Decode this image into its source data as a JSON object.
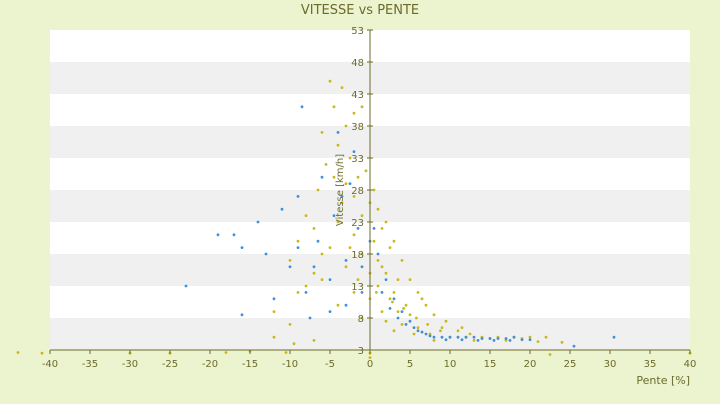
{
  "chart_data": {
    "type": "scatter",
    "title": "VITESSE vs PENTE",
    "xlabel": "Pente [%]",
    "ylabel": "Vitesse [km/h]",
    "xlim": [
      -40,
      40
    ],
    "ylim": [
      3,
      53
    ],
    "x_ticks": [
      "-40",
      "-35",
      "-30",
      "-25",
      "-20",
      "-15",
      "-10",
      "-5",
      "0",
      "5",
      "10",
      "15",
      "20",
      "25",
      "30",
      "35",
      "40"
    ],
    "y_ticks": [
      "3",
      "8",
      "13",
      "18",
      "23",
      "28",
      "33",
      "38",
      "43",
      "48",
      "53"
    ],
    "grid": true,
    "legend": "none",
    "colors": {
      "background": "#ecf3cf",
      "band_light": "#ffffff",
      "band_shade": "#f0f0f0",
      "axis": "#6b6b2a",
      "series_yellow": "#c8b81a",
      "series_blue": "#3d8fd8"
    },
    "series": [
      {
        "color_key": "series_yellow",
        "points": [
          [
            -5.0,
            45
          ],
          [
            -3.5,
            44
          ],
          [
            -4.5,
            41
          ],
          [
            -2.0,
            40
          ],
          [
            -1.0,
            41
          ],
          [
            -6.0,
            37
          ],
          [
            -3.0,
            38
          ],
          [
            -4.0,
            35
          ],
          [
            -2.5,
            33
          ],
          [
            -5.5,
            32
          ],
          [
            -1.5,
            30
          ],
          [
            -3.0,
            29
          ],
          [
            -6.5,
            28
          ],
          [
            -2.0,
            27
          ],
          [
            0.0,
            26
          ],
          [
            1.0,
            25
          ],
          [
            -1.0,
            24
          ],
          [
            2.0,
            23
          ],
          [
            -4.0,
            23
          ],
          [
            -7.0,
            22
          ],
          [
            -9.0,
            20
          ],
          [
            -2.0,
            21
          ],
          [
            0.5,
            20
          ],
          [
            3.0,
            20
          ],
          [
            -5.0,
            19
          ],
          [
            -1.0,
            18
          ],
          [
            1.0,
            17
          ],
          [
            4.0,
            17
          ],
          [
            -3.0,
            16
          ],
          [
            0.0,
            15
          ],
          [
            2.0,
            15
          ],
          [
            5.0,
            14
          ],
          [
            -6.0,
            14
          ],
          [
            -8.0,
            13
          ],
          [
            1.0,
            13
          ],
          [
            3.0,
            12
          ],
          [
            6.0,
            12
          ],
          [
            -2.0,
            12
          ],
          [
            0.0,
            11
          ],
          [
            2.5,
            11
          ],
          [
            4.5,
            10
          ],
          [
            7.0,
            10
          ],
          [
            -4.0,
            10
          ],
          [
            1.5,
            9
          ],
          [
            3.5,
            9
          ],
          [
            5.0,
            8.5
          ],
          [
            8.0,
            8.5
          ],
          [
            -1.0,
            8
          ],
          [
            2.0,
            7.5
          ],
          [
            4.0,
            7
          ],
          [
            6.0,
            6.5
          ],
          [
            9.0,
            6.5
          ],
          [
            11.0,
            6
          ],
          [
            3.0,
            6
          ],
          [
            5.5,
            5.5
          ],
          [
            7.5,
            5.5
          ],
          [
            10.0,
            5
          ],
          [
            12.0,
            5
          ],
          [
            14.0,
            5
          ],
          [
            16.0,
            5
          ],
          [
            18.0,
            5
          ],
          [
            20.0,
            5
          ],
          [
            22.0,
            5
          ],
          [
            8.0,
            4.5
          ],
          [
            13.0,
            4.5
          ],
          [
            17.0,
            4.5
          ],
          [
            -10.0,
            7
          ],
          [
            -12.0,
            5
          ],
          [
            -7.0,
            4.5
          ],
          [
            -9.5,
            4
          ],
          [
            -15.0,
            2.8
          ],
          [
            -18.0,
            2.6
          ],
          [
            -25.0,
            2.5
          ],
          [
            -30.0,
            2.5
          ],
          [
            -44.0,
            2.6
          ],
          [
            -41.0,
            2.5
          ],
          [
            -10.5,
            2.6
          ],
          [
            0.0,
            2.5
          ],
          [
            0.0,
            1.8
          ],
          [
            22.5,
            2.3
          ],
          [
            40.0,
            2.5
          ],
          [
            -12.0,
            9
          ],
          [
            -9.0,
            12
          ],
          [
            -7.0,
            15
          ],
          [
            -6.0,
            18
          ],
          [
            -10.0,
            17
          ],
          [
            -8.0,
            24
          ],
          [
            1.5,
            16
          ],
          [
            2.5,
            19
          ],
          [
            3.5,
            14
          ],
          [
            6.5,
            11
          ],
          [
            9.5,
            7.5
          ],
          [
            11.5,
            6.5
          ],
          [
            15.0,
            4.8
          ],
          [
            19.0,
            4.8
          ],
          [
            21.0,
            4.3
          ],
          [
            -3.5,
            26
          ],
          [
            -4.5,
            30
          ],
          [
            -0.5,
            31
          ],
          [
            0.5,
            28
          ],
          [
            1.5,
            22
          ],
          [
            -2.5,
            19
          ],
          [
            -1.5,
            14
          ],
          [
            0.8,
            12
          ],
          [
            2.8,
            10.5
          ],
          [
            4.2,
            9.5
          ],
          [
            5.8,
            8
          ],
          [
            7.2,
            7
          ],
          [
            8.8,
            6
          ],
          [
            12.5,
            5.5
          ],
          [
            24.0,
            4.2
          ]
        ]
      },
      {
        "color_key": "series_blue",
        "points": [
          [
            -8.5,
            41
          ],
          [
            -4.0,
            37
          ],
          [
            -2.0,
            34
          ],
          [
            -6.0,
            30
          ],
          [
            -9.0,
            27
          ],
          [
            -11.0,
            25
          ],
          [
            -14.0,
            23
          ],
          [
            -19.0,
            21
          ],
          [
            -17.0,
            21
          ],
          [
            -16.0,
            19
          ],
          [
            -13.0,
            18
          ],
          [
            -10.0,
            16
          ],
          [
            -7.0,
            16
          ],
          [
            -5.0,
            14
          ],
          [
            -23.0,
            13
          ],
          [
            -16.0,
            8.5
          ],
          [
            -12.0,
            11
          ],
          [
            -8.0,
            12
          ],
          [
            -3.0,
            17
          ],
          [
            -1.0,
            16
          ],
          [
            0.5,
            22
          ],
          [
            1.0,
            18
          ],
          [
            2.0,
            14
          ],
          [
            3.0,
            11
          ],
          [
            4.0,
            9
          ],
          [
            5.0,
            7.5
          ],
          [
            6.0,
            6
          ],
          [
            7.0,
            5.5
          ],
          [
            8.0,
            5
          ],
          [
            9.0,
            5
          ],
          [
            10.0,
            5
          ],
          [
            11.0,
            5
          ],
          [
            12.0,
            5
          ],
          [
            13.0,
            5
          ],
          [
            14.0,
            4.8
          ],
          [
            15.0,
            4.8
          ],
          [
            16.0,
            4.8
          ],
          [
            17.0,
            4.8
          ],
          [
            18.0,
            5
          ],
          [
            19.0,
            4.6
          ],
          [
            20.0,
            4.6
          ],
          [
            25.5,
            3.6
          ],
          [
            30.5,
            5
          ],
          [
            -9.0,
            19
          ],
          [
            -6.5,
            20
          ],
          [
            -4.5,
            24
          ],
          [
            -3.5,
            27
          ],
          [
            -2.5,
            29
          ],
          [
            -1.5,
            22
          ],
          [
            0.0,
            20
          ],
          [
            1.5,
            12
          ],
          [
            2.5,
            9.5
          ],
          [
            3.5,
            8
          ],
          [
            4.5,
            7
          ],
          [
            5.5,
            6.5
          ],
          [
            6.5,
            5.8
          ],
          [
            7.5,
            5.2
          ],
          [
            9.5,
            4.6
          ],
          [
            11.5,
            4.6
          ],
          [
            13.5,
            4.5
          ],
          [
            15.5,
            4.5
          ],
          [
            17.5,
            4.5
          ],
          [
            -1.0,
            12
          ],
          [
            -3.0,
            10
          ],
          [
            -5.0,
            9
          ],
          [
            -7.5,
            8
          ]
        ]
      }
    ]
  }
}
